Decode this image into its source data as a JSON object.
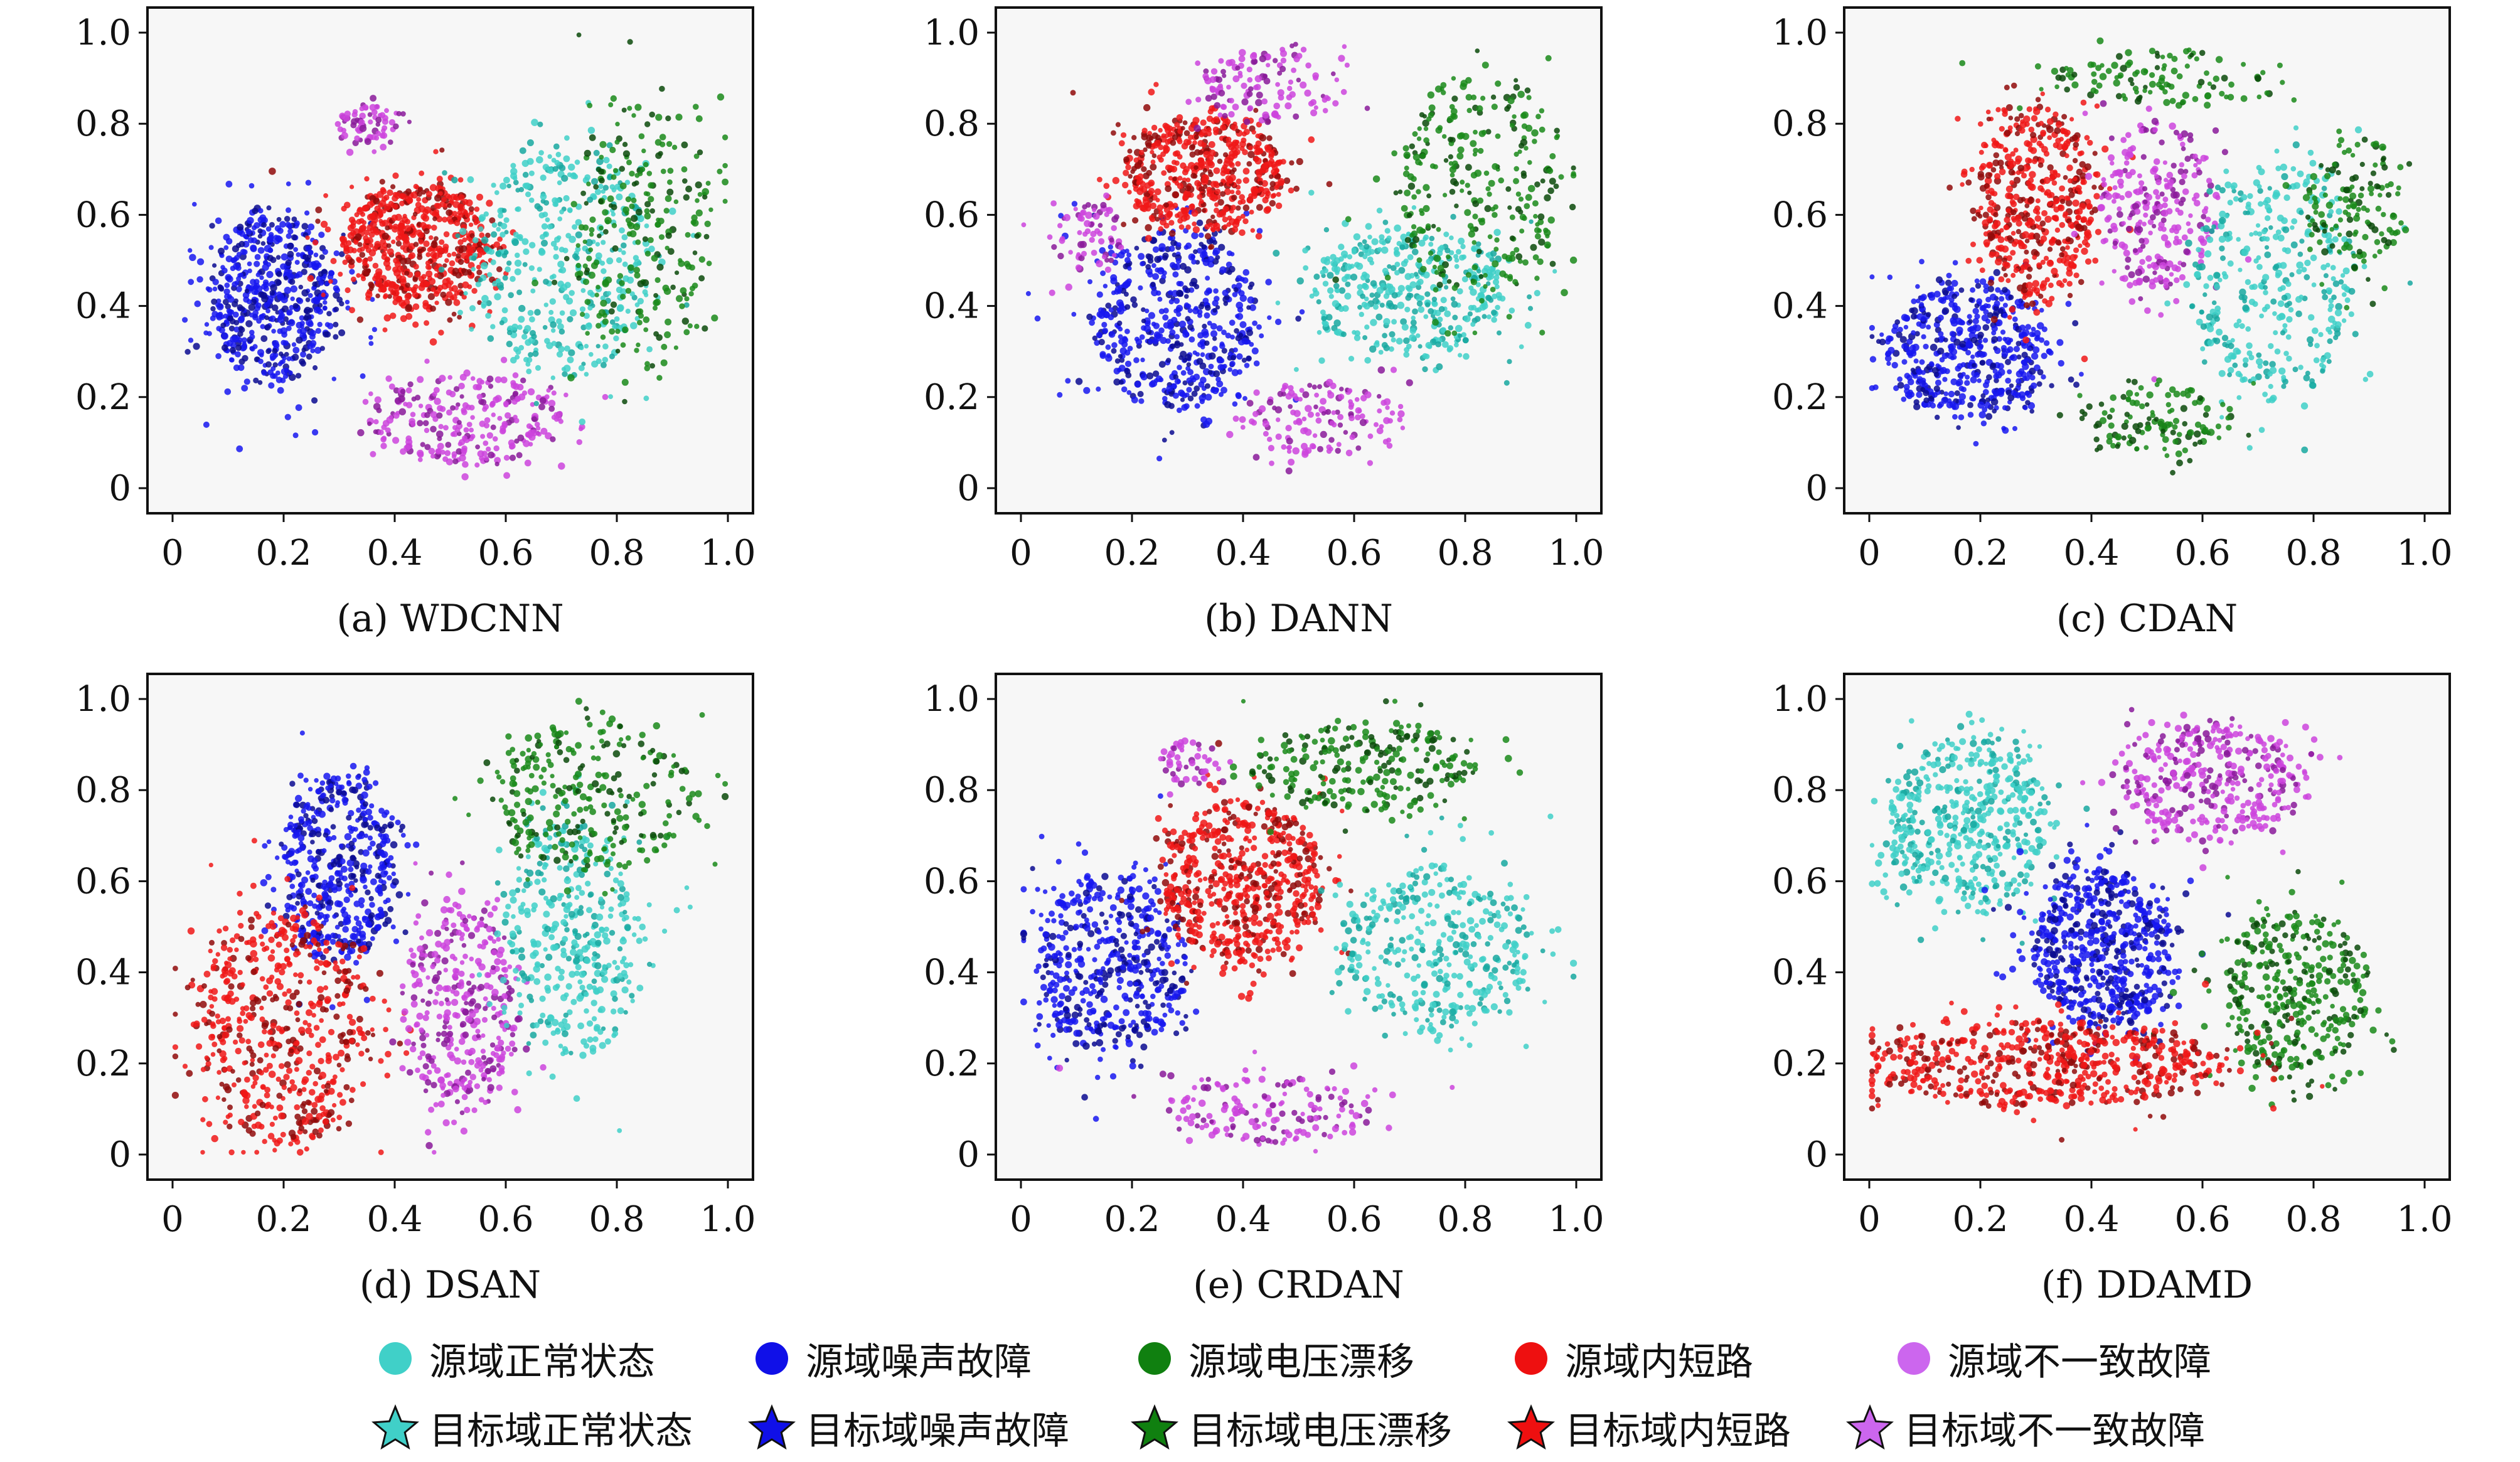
{
  "chart_data": [
    {
      "type": "scatter",
      "caption": "(a) WDCNN",
      "xlim": [
        0,
        1.0
      ],
      "ylim": [
        0,
        1.0
      ],
      "xticks": [
        "0",
        "0.2",
        "0.4",
        "0.6",
        "0.8",
        "1.0"
      ],
      "yticks": [
        "0",
        "0.2",
        "0.4",
        "0.6",
        "0.8",
        "1.0"
      ],
      "clusters": [
        {
          "class": "blue",
          "cx": 0.18,
          "cy": 0.42,
          "rx": 0.11,
          "ry": 0.17,
          "n": 600
        },
        {
          "class": "red",
          "cx": 0.44,
          "cy": 0.53,
          "rx": 0.13,
          "ry": 0.13,
          "n": 650
        },
        {
          "class": "magenta",
          "cx": 0.53,
          "cy": 0.15,
          "rx": 0.17,
          "ry": 0.09,
          "n": 280
        },
        {
          "class": "magenta",
          "cx": 0.35,
          "cy": 0.8,
          "rx": 0.05,
          "ry": 0.04,
          "n": 70
        },
        {
          "class": "cyan",
          "cx": 0.7,
          "cy": 0.5,
          "rx": 0.15,
          "ry": 0.25,
          "n": 420
        },
        {
          "class": "green",
          "cx": 0.85,
          "cy": 0.55,
          "rx": 0.12,
          "ry": 0.28,
          "n": 260
        }
      ]
    },
    {
      "type": "scatter",
      "caption": "(b) DANN",
      "xlim": [
        0,
        1.0
      ],
      "ylim": [
        0,
        1.0
      ],
      "xticks": [
        "0",
        "0.2",
        "0.4",
        "0.6",
        "0.8",
        "1.0"
      ],
      "yticks": [
        "0",
        "0.2",
        "0.4",
        "0.6",
        "0.8",
        "1.0"
      ],
      "clusters": [
        {
          "class": "blue",
          "cx": 0.28,
          "cy": 0.37,
          "rx": 0.14,
          "ry": 0.19,
          "n": 550
        },
        {
          "class": "red",
          "cx": 0.33,
          "cy": 0.69,
          "rx": 0.14,
          "ry": 0.12,
          "n": 560
        },
        {
          "class": "cyan",
          "cx": 0.7,
          "cy": 0.43,
          "rx": 0.17,
          "ry": 0.14,
          "n": 420
        },
        {
          "class": "green",
          "cx": 0.82,
          "cy": 0.65,
          "rx": 0.14,
          "ry": 0.25,
          "n": 300
        },
        {
          "class": "magenta",
          "cx": 0.54,
          "cy": 0.15,
          "rx": 0.14,
          "ry": 0.08,
          "n": 150
        },
        {
          "class": "magenta",
          "cx": 0.45,
          "cy": 0.88,
          "rx": 0.12,
          "ry": 0.08,
          "n": 130
        },
        {
          "class": "magenta",
          "cx": 0.12,
          "cy": 0.55,
          "rx": 0.06,
          "ry": 0.08,
          "n": 70
        }
      ]
    },
    {
      "type": "scatter",
      "caption": "(c) CDAN",
      "xlim": [
        0,
        1.0
      ],
      "ylim": [
        0,
        1.0
      ],
      "xticks": [
        "0",
        "0.2",
        "0.4",
        "0.6",
        "0.8",
        "1.0"
      ],
      "yticks": [
        "0",
        "0.2",
        "0.4",
        "0.6",
        "0.8",
        "1.0"
      ],
      "clusters": [
        {
          "class": "blue",
          "cx": 0.18,
          "cy": 0.3,
          "rx": 0.14,
          "ry": 0.14,
          "n": 520
        },
        {
          "class": "red",
          "cx": 0.3,
          "cy": 0.63,
          "rx": 0.1,
          "ry": 0.2,
          "n": 520
        },
        {
          "class": "magenta",
          "cx": 0.52,
          "cy": 0.62,
          "rx": 0.1,
          "ry": 0.18,
          "n": 280
        },
        {
          "class": "cyan",
          "cx": 0.73,
          "cy": 0.45,
          "rx": 0.14,
          "ry": 0.25,
          "n": 380
        },
        {
          "class": "green",
          "cx": 0.52,
          "cy": 0.15,
          "rx": 0.13,
          "ry": 0.07,
          "n": 130
        },
        {
          "class": "green",
          "cx": 0.55,
          "cy": 0.9,
          "rx": 0.2,
          "ry": 0.06,
          "n": 120
        },
        {
          "class": "green",
          "cx": 0.88,
          "cy": 0.62,
          "rx": 0.09,
          "ry": 0.14,
          "n": 140
        }
      ]
    },
    {
      "type": "scatter",
      "caption": "(d) DSAN",
      "xlim": [
        0,
        1.0
      ],
      "ylim": [
        0,
        1.0
      ],
      "xticks": [
        "0",
        "0.2",
        "0.4",
        "0.6",
        "0.8",
        "1.0"
      ],
      "yticks": [
        "0",
        "0.2",
        "0.4",
        "0.6",
        "0.8",
        "1.0"
      ],
      "clusters": [
        {
          "class": "blue",
          "cx": 0.3,
          "cy": 0.63,
          "rx": 0.1,
          "ry": 0.2,
          "n": 500
        },
        {
          "class": "red",
          "cx": 0.2,
          "cy": 0.28,
          "rx": 0.15,
          "ry": 0.25,
          "n": 560
        },
        {
          "class": "magenta",
          "cx": 0.52,
          "cy": 0.32,
          "rx": 0.1,
          "ry": 0.22,
          "n": 380
        },
        {
          "class": "cyan",
          "cx": 0.72,
          "cy": 0.47,
          "rx": 0.12,
          "ry": 0.25,
          "n": 380
        },
        {
          "class": "green",
          "cx": 0.75,
          "cy": 0.78,
          "rx": 0.18,
          "ry": 0.16,
          "n": 280
        }
      ]
    },
    {
      "type": "scatter",
      "caption": "(e) CRDAN",
      "xlim": [
        0,
        1.0
      ],
      "ylim": [
        0,
        1.0
      ],
      "xticks": [
        "0",
        "0.2",
        "0.4",
        "0.6",
        "0.8",
        "1.0"
      ],
      "yticks": [
        "0",
        "0.2",
        "0.4",
        "0.6",
        "0.8",
        "1.0"
      ],
      "clusters": [
        {
          "class": "blue",
          "cx": 0.16,
          "cy": 0.42,
          "rx": 0.13,
          "ry": 0.19,
          "n": 500
        },
        {
          "class": "red",
          "cx": 0.4,
          "cy": 0.6,
          "rx": 0.14,
          "ry": 0.17,
          "n": 620
        },
        {
          "class": "cyan",
          "cx": 0.75,
          "cy": 0.45,
          "rx": 0.17,
          "ry": 0.17,
          "n": 380
        },
        {
          "class": "green",
          "cx": 0.62,
          "cy": 0.85,
          "rx": 0.2,
          "ry": 0.1,
          "n": 250
        },
        {
          "class": "magenta",
          "cx": 0.45,
          "cy": 0.1,
          "rx": 0.18,
          "ry": 0.07,
          "n": 170
        },
        {
          "class": "magenta",
          "cx": 0.3,
          "cy": 0.86,
          "rx": 0.05,
          "ry": 0.05,
          "n": 50
        }
      ]
    },
    {
      "type": "scatter",
      "caption": "(f) DDAMD",
      "xlim": [
        0,
        1.0
      ],
      "ylim": [
        0,
        1.0
      ],
      "xticks": [
        "0",
        "0.2",
        "0.4",
        "0.6",
        "0.8",
        "1.0"
      ],
      "yticks": [
        "0",
        "0.2",
        "0.4",
        "0.6",
        "0.8",
        "1.0"
      ],
      "clusters": [
        {
          "class": "cyan",
          "cx": 0.18,
          "cy": 0.73,
          "rx": 0.14,
          "ry": 0.18,
          "n": 500
        },
        {
          "class": "blue",
          "cx": 0.42,
          "cy": 0.45,
          "rx": 0.12,
          "ry": 0.17,
          "n": 620
        },
        {
          "class": "magenta",
          "cx": 0.62,
          "cy": 0.82,
          "rx": 0.16,
          "ry": 0.12,
          "n": 380
        },
        {
          "class": "green",
          "cx": 0.77,
          "cy": 0.35,
          "rx": 0.13,
          "ry": 0.18,
          "n": 380
        },
        {
          "class": "red",
          "cx": 0.32,
          "cy": 0.2,
          "rx": 0.31,
          "ry": 0.09,
          "n": 620
        }
      ]
    }
  ],
  "legend": {
    "source": [
      {
        "label": "源域正常状态",
        "color": "#40d0c8",
        "marker": "circle"
      },
      {
        "label": "源域噪声故障",
        "color": "#1010e8",
        "marker": "circle"
      },
      {
        "label": "源域电压漂移",
        "color": "#108010",
        "marker": "circle"
      },
      {
        "label": "源域内短路",
        "color": "#ee1010",
        "marker": "circle"
      },
      {
        "label": "源域不一致故障",
        "color": "#cc66ee",
        "marker": "circle"
      }
    ],
    "target": [
      {
        "label": "目标域正常状态",
        "color": "#40d0c8",
        "marker": "star"
      },
      {
        "label": "目标域噪声故障",
        "color": "#1010e8",
        "marker": "star"
      },
      {
        "label": "目标域电压漂移",
        "color": "#108010",
        "marker": "star"
      },
      {
        "label": "目标域内短路",
        "color": "#ee1010",
        "marker": "star"
      },
      {
        "label": "目标域不一致故障",
        "color": "#cc66ee",
        "marker": "star"
      }
    ]
  },
  "class_colors": {
    "cyan": {
      "fill": "#40d0c8",
      "dark": "#18a8a0"
    },
    "blue": {
      "fill": "#1818f0",
      "dark": "#0a0a90"
    },
    "green": {
      "fill": "#1a8a1a",
      "dark": "#0b4a0b"
    },
    "red": {
      "fill": "#f01818",
      "dark": "#900a0a"
    },
    "magenta": {
      "fill": "#cc44dd",
      "dark": "#8a1a9a"
    }
  }
}
